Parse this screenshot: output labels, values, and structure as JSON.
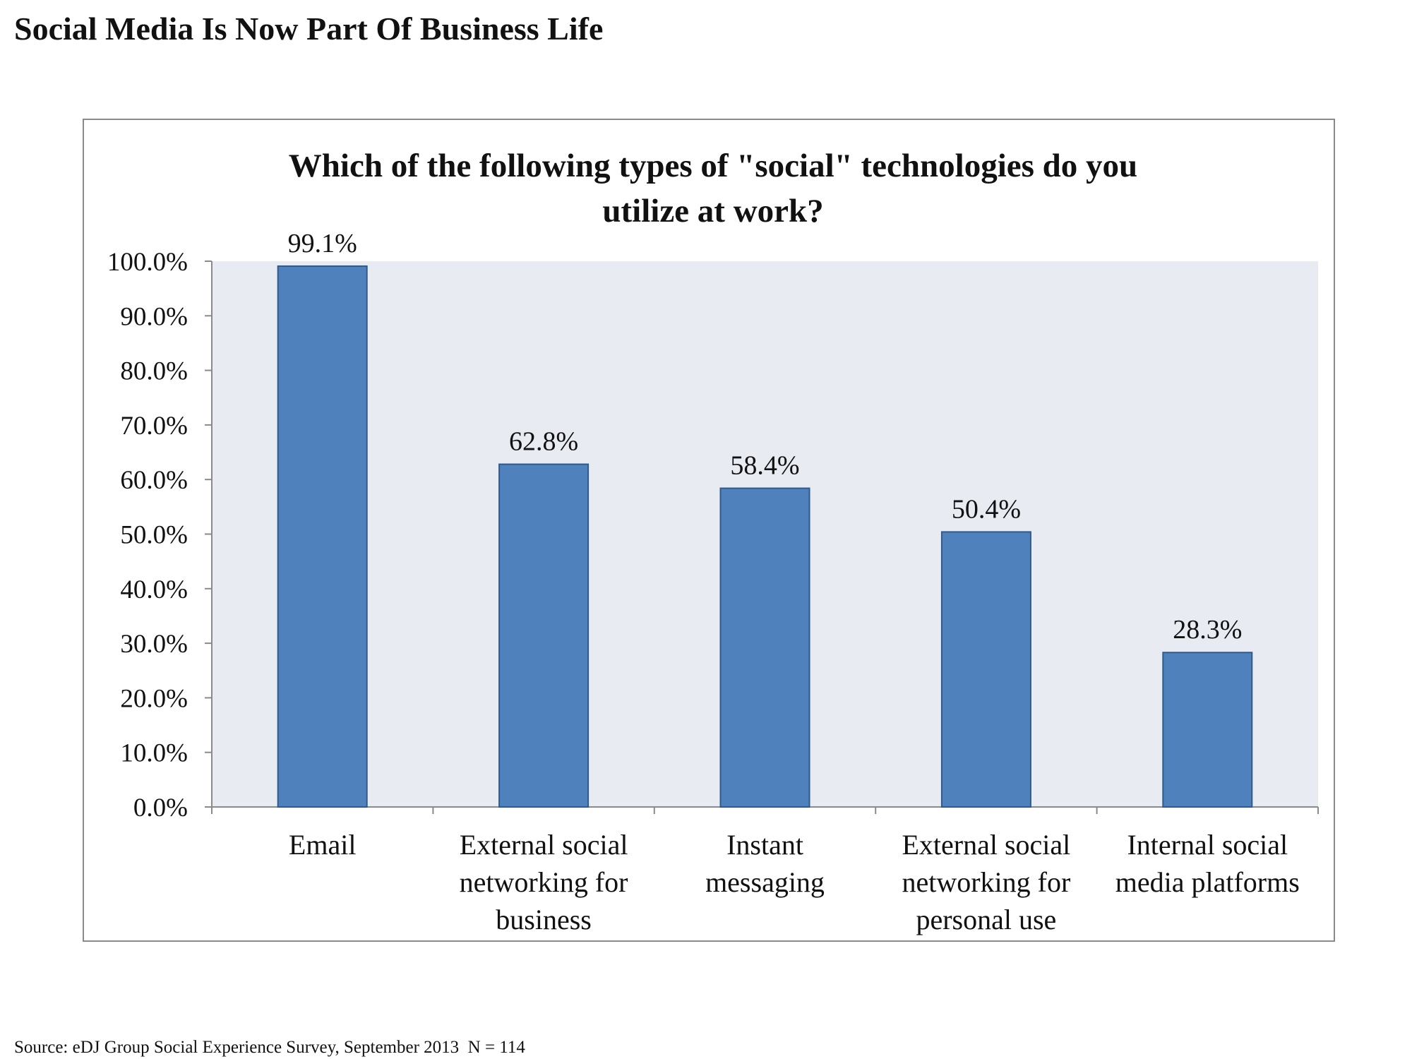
{
  "page": {
    "title": "Social Media Is Now Part Of Business Life",
    "source": "Source: eDJ Group Social Experience Survey, September 2013  N = 114"
  },
  "colors": {
    "bar": "#4f81bd",
    "bar_border": "#2f5a8c",
    "plot_background": "#e8ecf2",
    "axis": "#8a8a8a"
  },
  "chart_data": {
    "type": "bar",
    "title_lines": [
      "Which of the following types of \"social\" technologies do you",
      "utilize at work?"
    ],
    "categories": [
      [
        "Email"
      ],
      [
        "External social",
        "networking for",
        "business"
      ],
      [
        "Instant",
        "messaging"
      ],
      [
        "External social",
        "networking for",
        "personal use"
      ],
      [
        "Internal social",
        "media platforms"
      ]
    ],
    "values": [
      99.1,
      62.8,
      58.4,
      50.4,
      28.3
    ],
    "data_labels": [
      "99.1%",
      "62.8%",
      "58.4%",
      "50.4%",
      "28.3%"
    ],
    "ylim": [
      0,
      100
    ],
    "y_ticks": [
      0,
      10,
      20,
      30,
      40,
      50,
      60,
      70,
      80,
      90,
      100
    ],
    "y_tick_labels": [
      "0.0%",
      "10.0%",
      "20.0%",
      "30.0%",
      "40.0%",
      "50.0%",
      "60.0%",
      "70.0%",
      "80.0%",
      "90.0%",
      "100.0%"
    ],
    "grid": false,
    "legend": "none"
  }
}
